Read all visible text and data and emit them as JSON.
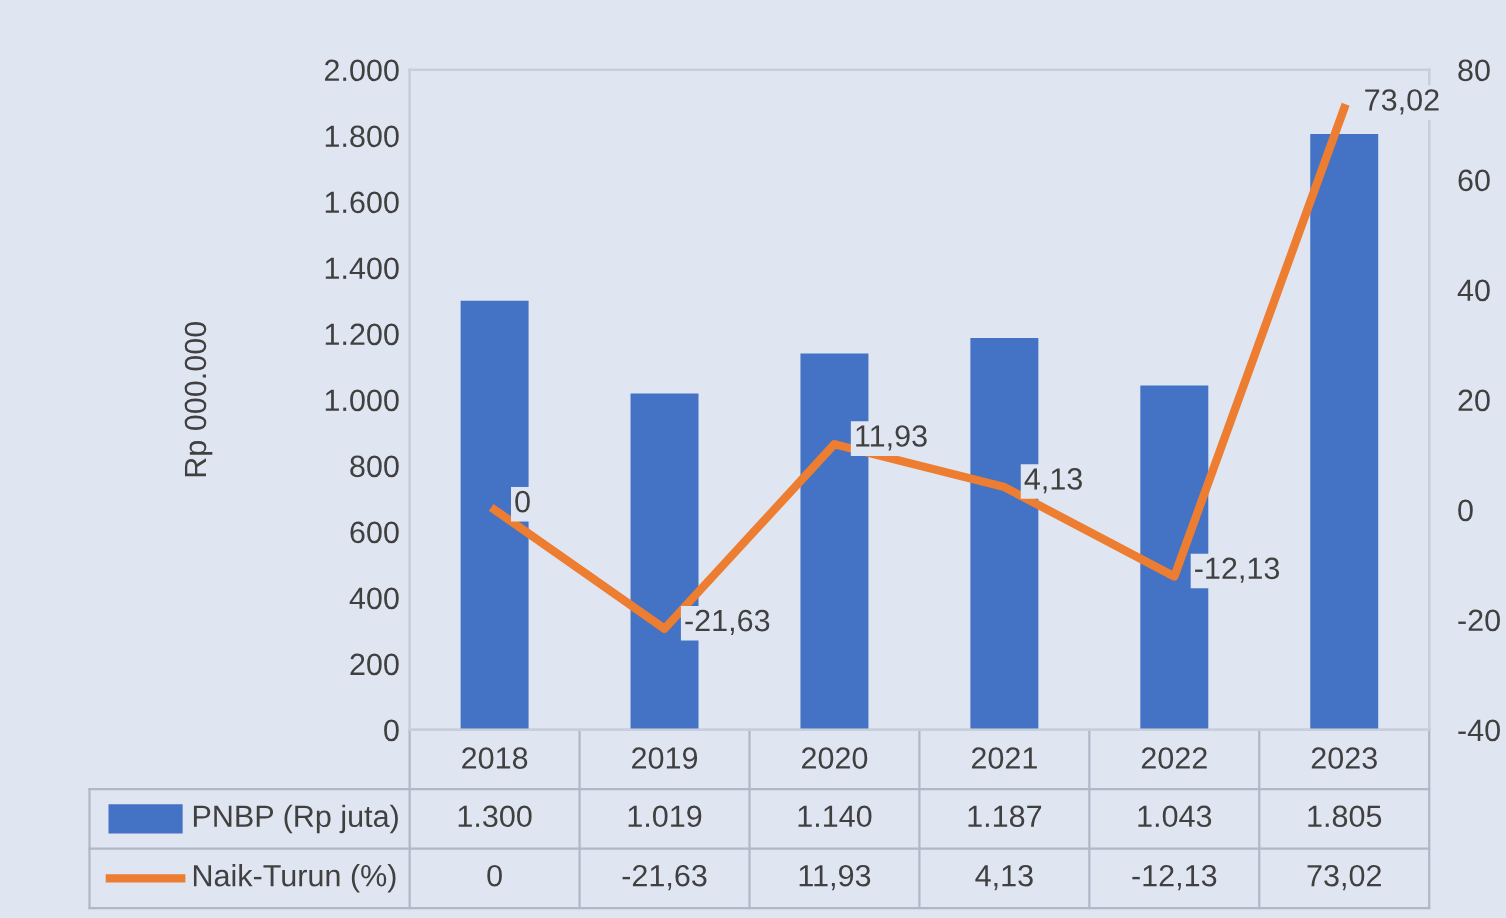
{
  "chart_data": {
    "type": "bar",
    "ylabel": "Rp 000.000",
    "categories": [
      "2018",
      "2019",
      "2020",
      "2021",
      "2022",
      "2023"
    ],
    "series": [
      {
        "name": "PNBP (Rp juta)",
        "color": "#4472c4",
        "values": [
          1300,
          1019,
          1140,
          1187,
          1043,
          1805
        ],
        "value_labels": [
          "1.300",
          "1.019",
          "1.140",
          "1.187",
          "1.043",
          "1.805"
        ]
      },
      {
        "name": "Naik-Turun (%)",
        "type": "line",
        "axis": "y2",
        "color": "#ed7d31",
        "values": [
          0,
          -21.63,
          11.93,
          4.13,
          -12.13,
          73.02
        ],
        "value_labels": [
          "0",
          "-21,63",
          "11,93",
          "4,13",
          "-12,13",
          "73,02"
        ]
      }
    ],
    "ylim": [
      0,
      2000
    ],
    "yticks": [
      {
        "value": 0,
        "label": "0"
      },
      {
        "value": 200,
        "label": "200"
      },
      {
        "value": 400,
        "label": "400"
      },
      {
        "value": 600,
        "label": "600"
      },
      {
        "value": 800,
        "label": "800"
      },
      {
        "value": 1000,
        "label": "1.000"
      },
      {
        "value": 1200,
        "label": "1.200"
      },
      {
        "value": 1400,
        "label": "1.400"
      },
      {
        "value": 1600,
        "label": "1.600"
      },
      {
        "value": 1800,
        "label": "1.800"
      },
      {
        "value": 2000,
        "label": "2.000"
      }
    ],
    "y2lim": [
      -40,
      80
    ],
    "y2ticks": [
      -40,
      -20,
      0,
      20,
      40,
      60,
      80
    ],
    "grid": false,
    "legend": "bottom",
    "marker": "none",
    "line_style": "solid"
  }
}
